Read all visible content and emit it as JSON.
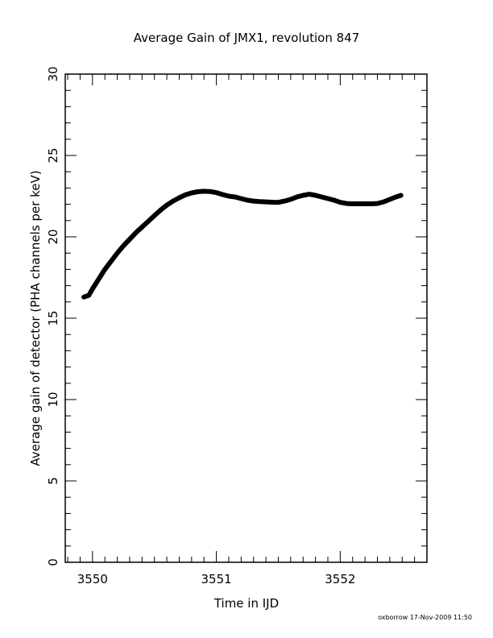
{
  "chart_data": {
    "type": "line",
    "title": "Average Gain of JMX1, revolution 847",
    "xlabel": "Time in IJD",
    "ylabel": "Average gain of detector (PHA channels per keV)",
    "xlim": [
      3549.78,
      3552.7
    ],
    "ylim": [
      0,
      30
    ],
    "xticks": [
      3550,
      3551,
      3552
    ],
    "xtick_labels": [
      "3550",
      "3551",
      "3552"
    ],
    "yticks": [
      0,
      5,
      10,
      15,
      20,
      25,
      30
    ],
    "ytick_labels": [
      "0",
      "5",
      "10",
      "15",
      "20",
      "25",
      "30"
    ],
    "grid": false,
    "series": [
      {
        "color": "#000000",
        "x": [
          3549.93,
          3549.97,
          3550.0,
          3550.05,
          3550.1,
          3550.15,
          3550.2,
          3550.25,
          3550.3,
          3550.35,
          3550.4,
          3550.45,
          3550.5,
          3550.55,
          3550.6,
          3550.65,
          3550.7,
          3550.75,
          3550.8,
          3550.85,
          3550.9,
          3550.95,
          3551.0,
          3551.05,
          3551.1,
          3551.15,
          3551.2,
          3551.25,
          3551.3,
          3551.35,
          3551.4,
          3551.45,
          3551.5,
          3551.55,
          3551.6,
          3551.65,
          3551.7,
          3551.75,
          3551.8,
          3551.85,
          3551.9,
          3551.95,
          3552.0,
          3552.05,
          3552.1,
          3552.15,
          3552.2,
          3552.25,
          3552.3,
          3552.35,
          3552.4,
          3552.45,
          3552.49
        ],
        "y": [
          16.3,
          16.4,
          16.8,
          17.4,
          18.0,
          18.5,
          19.0,
          19.45,
          19.85,
          20.25,
          20.6,
          20.95,
          21.3,
          21.65,
          21.95,
          22.2,
          22.4,
          22.58,
          22.7,
          22.77,
          22.8,
          22.78,
          22.72,
          22.6,
          22.5,
          22.45,
          22.35,
          22.25,
          22.2,
          22.17,
          22.15,
          22.13,
          22.12,
          22.2,
          22.3,
          22.45,
          22.55,
          22.62,
          22.55,
          22.45,
          22.35,
          22.25,
          22.12,
          22.05,
          22.03,
          22.03,
          22.03,
          22.03,
          22.05,
          22.15,
          22.3,
          22.45,
          22.55
        ]
      }
    ]
  },
  "footer": {
    "stamp": "oxborrow 17-Nov-2009 11:50"
  }
}
